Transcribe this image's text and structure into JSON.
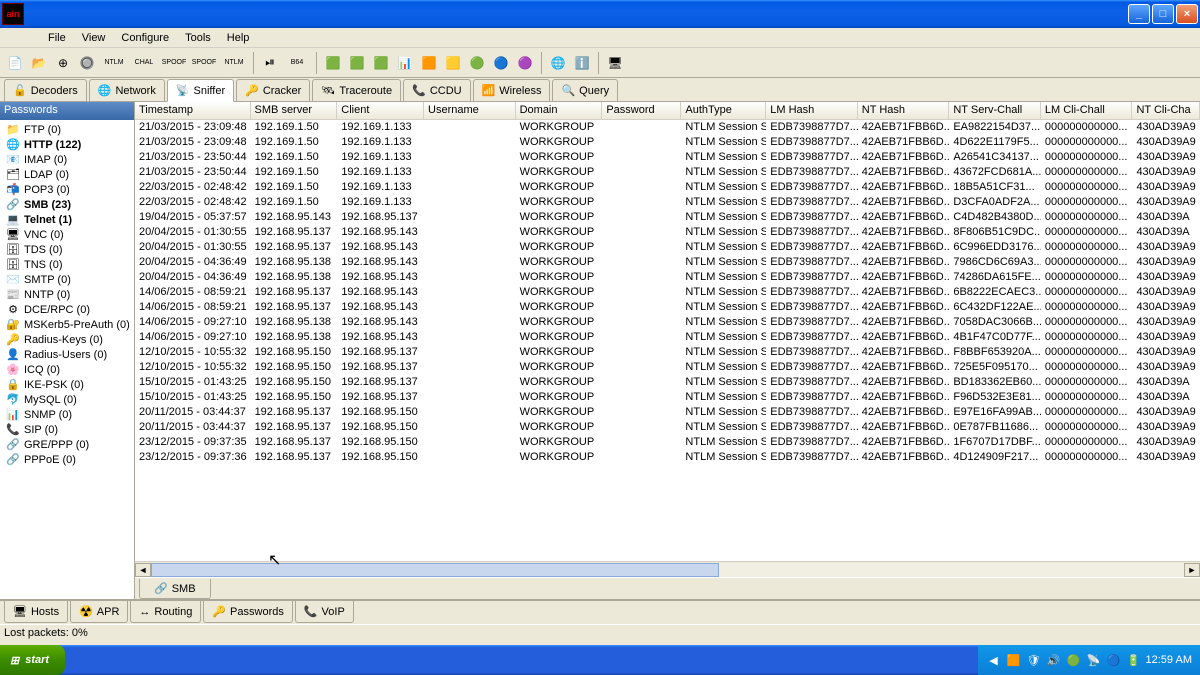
{
  "window": {
    "title": "ain"
  },
  "window_controls": {
    "min": "_",
    "max": "□",
    "close": "×"
  },
  "menu": [
    "File",
    "View",
    "Configure",
    "Tools",
    "Help"
  ],
  "toolbar_icons": [
    "📄",
    "📂",
    "⊕",
    "🔘",
    "NTLM",
    "CHAL",
    "SPOOF",
    "SPOOF",
    "NTLM",
    "",
    "⏯",
    "B64",
    "",
    "🟩",
    "🟩",
    "🟩",
    "📊",
    "🟧",
    "🟨",
    "🟢",
    "🔵",
    "🟣",
    "",
    "🌐",
    "ℹ️",
    "",
    "🖥"
  ],
  "top_tabs": [
    {
      "icon": "🔓",
      "label": "Decoders"
    },
    {
      "icon": "🌐",
      "label": "Network"
    },
    {
      "icon": "📡",
      "label": "Sniffer",
      "active": true
    },
    {
      "icon": "🔑",
      "label": "Cracker"
    },
    {
      "icon": "🛰",
      "label": "Traceroute"
    },
    {
      "icon": "📞",
      "label": "CCDU"
    },
    {
      "icon": "📶",
      "label": "Wireless"
    },
    {
      "icon": "🔍",
      "label": "Query"
    }
  ],
  "sidebar": {
    "header": "Passwords",
    "items": [
      {
        "icon": "📁",
        "label": "FTP (0)"
      },
      {
        "icon": "🌐",
        "label": "HTTP (122)",
        "bold": true
      },
      {
        "icon": "📧",
        "label": "IMAP (0)"
      },
      {
        "icon": "🗂",
        "label": "LDAP (0)"
      },
      {
        "icon": "📬",
        "label": "POP3 (0)"
      },
      {
        "icon": "🔗",
        "label": "SMB (23)",
        "bold": true
      },
      {
        "icon": "💻",
        "label": "Telnet (1)",
        "bold": true
      },
      {
        "icon": "🖥",
        "label": "VNC (0)"
      },
      {
        "icon": "🗄",
        "label": "TDS (0)"
      },
      {
        "icon": "🗄",
        "label": "TNS (0)"
      },
      {
        "icon": "✉️",
        "label": "SMTP (0)"
      },
      {
        "icon": "📰",
        "label": "NNTP (0)"
      },
      {
        "icon": "⚙",
        "label": "DCE/RPC (0)"
      },
      {
        "icon": "🔐",
        "label": "MSKerb5-PreAuth (0)"
      },
      {
        "icon": "🔑",
        "label": "Radius-Keys (0)"
      },
      {
        "icon": "👤",
        "label": "Radius-Users (0)"
      },
      {
        "icon": "🌸",
        "label": "ICQ (0)"
      },
      {
        "icon": "🔒",
        "label": "IKE-PSK (0)"
      },
      {
        "icon": "🐬",
        "label": "MySQL (0)"
      },
      {
        "icon": "📊",
        "label": "SNMP (0)"
      },
      {
        "icon": "📞",
        "label": "SIP (0)"
      },
      {
        "icon": "🔗",
        "label": "GRE/PPP (0)"
      },
      {
        "icon": "🔗",
        "label": "PPPoE (0)"
      }
    ]
  },
  "grid": {
    "columns": [
      "Timestamp",
      "SMB server",
      "Client",
      "Username",
      "Domain",
      "Password",
      "AuthType",
      "LM Hash",
      "NT Hash",
      "NT Serv-Chall",
      "LM Cli-Chall",
      "NT Cli-Cha"
    ],
    "rows": [
      [
        "21/03/2015 - 23:09:48",
        "192.169.1.50",
        "192.169.1.133",
        "",
        "WORKGROUP",
        "",
        "NTLM Session S...",
        "EDB7398877D7...",
        "42AEB71FBB6D...",
        "EA9822154D37...",
        "000000000000...",
        "430AD39A9"
      ],
      [
        "21/03/2015 - 23:09:48",
        "192.169.1.50",
        "192.169.1.133",
        "",
        "WORKGROUP",
        "",
        "NTLM Session S...",
        "EDB7398877D7...",
        "42AEB71FBB6D...",
        "4D622E1179F5...",
        "000000000000...",
        "430AD39A9"
      ],
      [
        "21/03/2015 - 23:50:44",
        "192.169.1.50",
        "192.169.1.133",
        "",
        "WORKGROUP",
        "",
        "NTLM Session S...",
        "EDB7398877D7...",
        "42AEB71FBB6D...",
        "A26541C34137...",
        "000000000000...",
        "430AD39A9"
      ],
      [
        "21/03/2015 - 23:50:44",
        "192.169.1.50",
        "192.169.1.133",
        "",
        "WORKGROUP",
        "",
        "NTLM Session S...",
        "EDB7398877D7...",
        "42AEB71FBB6D...",
        "43672FCD681A...",
        "000000000000...",
        "430AD39A9"
      ],
      [
        "22/03/2015 - 02:48:42",
        "192.169.1.50",
        "192.169.1.133",
        "",
        "WORKGROUP",
        "",
        "NTLM Session S...",
        "EDB7398877D7...",
        "42AEB71FBB6D...",
        "18B5A51CF31...",
        "000000000000...",
        "430AD39A9"
      ],
      [
        "22/03/2015 - 02:48:42",
        "192.169.1.50",
        "192.169.1.133",
        "",
        "WORKGROUP",
        "",
        "NTLM Session S...",
        "EDB7398877D7...",
        "42AEB71FBB6D...",
        "D3CFA0ADF2A...",
        "000000000000...",
        "430AD39A9"
      ],
      [
        "19/04/2015 - 05:37:57",
        "192.168.95.143",
        "192.168.95.137",
        "",
        "WORKGROUP",
        "",
        "NTLM Session S...",
        "EDB7398877D7...",
        "42AEB71FBB6D...",
        "C4D482B4380D...",
        "000000000000...",
        "430AD39A"
      ],
      [
        "20/04/2015 - 01:30:55",
        "192.168.95.137",
        "192.168.95.143",
        "",
        "WORKGROUP",
        "",
        "NTLM Session S...",
        "EDB7398877D7...",
        "42AEB71FBB6D...",
        "8F806B51C9DC...",
        "000000000000...",
        "430AD39A"
      ],
      [
        "20/04/2015 - 01:30:55",
        "192.168.95.137",
        "192.168.95.143",
        "",
        "WORKGROUP",
        "",
        "NTLM Session S...",
        "EDB7398877D7...",
        "42AEB71FBB6D...",
        "6C996EDD3176...",
        "000000000000...",
        "430AD39A9"
      ],
      [
        "20/04/2015 - 04:36:49",
        "192.168.95.138",
        "192.168.95.143",
        "",
        "WORKGROUP",
        "",
        "NTLM Session S...",
        "EDB7398877D7...",
        "42AEB71FBB6D...",
        "7986CD6C69A3...",
        "000000000000...",
        "430AD39A9"
      ],
      [
        "20/04/2015 - 04:36:49",
        "192.168.95.138",
        "192.168.95.143",
        "",
        "WORKGROUP",
        "",
        "NTLM Session S...",
        "EDB7398877D7...",
        "42AEB71FBB6D...",
        "74286DA615FE...",
        "000000000000...",
        "430AD39A9"
      ],
      [
        "14/06/2015 - 08:59:21",
        "192.168.95.137",
        "192.168.95.143",
        "",
        "WORKGROUP",
        "",
        "NTLM Session S...",
        "EDB7398877D7...",
        "42AEB71FBB6D...",
        "6B8222ECAEC3...",
        "000000000000...",
        "430AD39A9"
      ],
      [
        "14/06/2015 - 08:59:21",
        "192.168.95.137",
        "192.168.95.143",
        "",
        "WORKGROUP",
        "",
        "NTLM Session S...",
        "EDB7398877D7...",
        "42AEB71FBB6D...",
        "6C432DF122AE...",
        "000000000000...",
        "430AD39A9"
      ],
      [
        "14/06/2015 - 09:27:10",
        "192.168.95.138",
        "192.168.95.143",
        "",
        "WORKGROUP",
        "",
        "NTLM Session S...",
        "EDB7398877D7...",
        "42AEB71FBB6D...",
        "7058DAC3066B...",
        "000000000000...",
        "430AD39A9"
      ],
      [
        "14/06/2015 - 09:27:10",
        "192.168.95.138",
        "192.168.95.143",
        "",
        "WORKGROUP",
        "",
        "NTLM Session S...",
        "EDB7398877D7...",
        "42AEB71FBB6D...",
        "4B1F47C0D77F...",
        "000000000000...",
        "430AD39A9"
      ],
      [
        "12/10/2015 - 10:55:32",
        "192.168.95.150",
        "192.168.95.137",
        "",
        "WORKGROUP",
        "",
        "NTLM Session S...",
        "EDB7398877D7...",
        "42AEB71FBB6D...",
        "F8BBF653920A...",
        "000000000000...",
        "430AD39A9"
      ],
      [
        "12/10/2015 - 10:55:32",
        "192.168.95.150",
        "192.168.95.137",
        "",
        "WORKGROUP",
        "",
        "NTLM Session S...",
        "EDB7398877D7...",
        "42AEB71FBB6D...",
        "725E5F095170...",
        "000000000000...",
        "430AD39A9"
      ],
      [
        "15/10/2015 - 01:43:25",
        "192.168.95.150",
        "192.168.95.137",
        "",
        "WORKGROUP",
        "",
        "NTLM Session S...",
        "EDB7398877D7...",
        "42AEB71FBB6D...",
        "BD183362EB60...",
        "000000000000...",
        "430AD39A"
      ],
      [
        "15/10/2015 - 01:43:25",
        "192.168.95.150",
        "192.168.95.137",
        "",
        "WORKGROUP",
        "",
        "NTLM Session S...",
        "EDB7398877D7...",
        "42AEB71FBB6D...",
        "F96D532E3E81...",
        "000000000000...",
        "430AD39A"
      ],
      [
        "20/11/2015 - 03:44:37",
        "192.168.95.137",
        "192.168.95.150",
        "",
        "WORKGROUP",
        "",
        "NTLM Session S...",
        "EDB7398877D7...",
        "42AEB71FBB6D...",
        "E97E16FA99AB...",
        "000000000000...",
        "430AD39A9"
      ],
      [
        "20/11/2015 - 03:44:37",
        "192.168.95.137",
        "192.168.95.150",
        "",
        "WORKGROUP",
        "",
        "NTLM Session S...",
        "EDB7398877D7...",
        "42AEB71FBB6D...",
        "0E787FB11686...",
        "000000000000...",
        "430AD39A9"
      ],
      [
        "23/12/2015 - 09:37:35",
        "192.168.95.137",
        "192.168.95.150",
        "",
        "WORKGROUP",
        "",
        "NTLM Session S...",
        "EDB7398877D7...",
        "42AEB71FBB6D...",
        "1F6707D17DBF...",
        "000000000000...",
        "430AD39A9"
      ],
      [
        "23/12/2015 - 09:37:36",
        "192.168.95.137",
        "192.168.95.150",
        "",
        "WORKGROUP",
        "",
        "NTLM Session S...",
        "EDB7398877D7...",
        "42AEB71FBB6D...",
        "4D124909F217...",
        "000000000000...",
        "430AD39A9"
      ]
    ]
  },
  "subtab": {
    "icon": "🔗",
    "label": "SMB"
  },
  "bottom_tabs": [
    {
      "icon": "🖥",
      "label": "Hosts"
    },
    {
      "icon": "☢️",
      "label": "APR"
    },
    {
      "icon": "↔",
      "label": "Routing"
    },
    {
      "icon": "🔑",
      "label": "Passwords"
    },
    {
      "icon": "📞",
      "label": "VoIP"
    }
  ],
  "status": "Lost packets:   0%",
  "taskbar": {
    "start": "start",
    "tray_icons": [
      "◀",
      "🟧",
      "🛡",
      "🔊",
      "🟢",
      "📡",
      "🔵",
      "🔋"
    ],
    "clock": "12:59 AM"
  }
}
